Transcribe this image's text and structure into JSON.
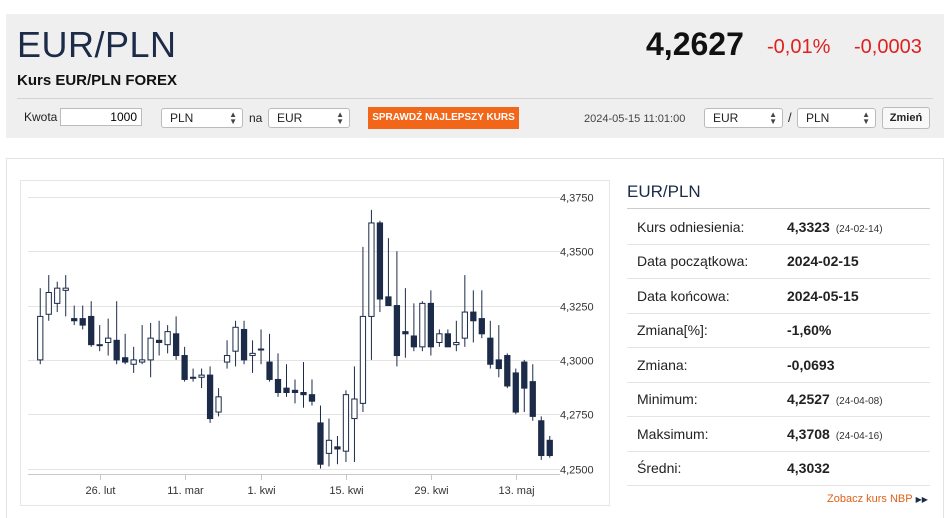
{
  "header": {
    "pair": "EUR/PLN",
    "subtitle": "Kurs EUR/PLN FOREX",
    "rate": "4,2627",
    "change_pct": "-0,01%",
    "change_abs": "-0,0003",
    "colors": {
      "negative": "#e02020",
      "title": "#1b2b48"
    }
  },
  "converter": {
    "amount_label": "Kwota",
    "amount_value": "1000",
    "from_currency": "PLN",
    "to_label": "na",
    "to_currency": "EUR",
    "button_label": "SPRAWDŹ NAJLEPSZY KURS",
    "button_color": "#f2661a",
    "timestamp": "2024-05-15 11:01:00",
    "pair_base": "EUR",
    "pair_sep": "/",
    "pair_quote": "PLN",
    "change_button": "Zmień"
  },
  "stats": {
    "title": "EUR/PLN",
    "rows": [
      {
        "label": "Kurs odniesienia:",
        "value": "4,3323",
        "date": "(24-02-14)"
      },
      {
        "label": "Data początkowa:",
        "value": "2024-02-15",
        "date": ""
      },
      {
        "label": "Data końcowa:",
        "value": "2024-05-15",
        "date": ""
      },
      {
        "label": "Zmiana[%]:",
        "value": "-1,60%",
        "date": ""
      },
      {
        "label": "Zmiana:",
        "value": "-0,0693",
        "date": ""
      },
      {
        "label": "Minimum:",
        "value": "4,2527",
        "date": "(24-04-08)"
      },
      {
        "label": "Maksimum:",
        "value": "4,3708",
        "date": "(24-04-16)"
      },
      {
        "label": "Średni:",
        "value": "4,3032",
        "date": ""
      }
    ],
    "nbp_link": "Zobacz kurs NBP"
  },
  "chart_data": {
    "type": "candlestick",
    "ylim": [
      4.2475,
      4.38
    ],
    "yticks": [
      4.375,
      4.35,
      4.325,
      4.3,
      4.275,
      4.25
    ],
    "ytick_labels": [
      "4,3750",
      "4,3500",
      "4,3250",
      "4,3000",
      "4,2750",
      "4,2500"
    ],
    "xticks": [
      {
        "label": "26. lut",
        "index": 7
      },
      {
        "label": "11. mar",
        "index": 17
      },
      {
        "label": "1. kwi",
        "index": 26
      },
      {
        "label": "15. kwi",
        "index": 36
      },
      {
        "label": "29. kwi",
        "index": 46
      },
      {
        "label": "13. maj",
        "index": 56
      }
    ],
    "grid": true,
    "colors": {
      "up": "#ffffff",
      "down": "#1b2b48",
      "outline": "#1b2b48"
    },
    "candles": [
      {
        "o": 4.3,
        "h": 4.333,
        "l": 4.298,
        "c": 4.32
      },
      {
        "o": 4.321,
        "h": 4.339,
        "l": 4.318,
        "c": 4.331
      },
      {
        "o": 4.326,
        "h": 4.336,
        "l": 4.322,
        "c": 4.333
      },
      {
        "o": 4.332,
        "h": 4.339,
        "l": 4.32,
        "c": 4.333
      },
      {
        "o": 4.319,
        "h": 4.325,
        "l": 4.316,
        "c": 4.318
      },
      {
        "o": 4.319,
        "h": 4.325,
        "l": 4.314,
        "c": 4.316
      },
      {
        "o": 4.32,
        "h": 4.327,
        "l": 4.306,
        "c": 4.307
      },
      {
        "o": 4.307,
        "h": 4.316,
        "l": 4.304,
        "c": 4.307
      },
      {
        "o": 4.308,
        "h": 4.319,
        "l": 4.302,
        "c": 4.31
      },
      {
        "o": 4.309,
        "h": 4.327,
        "l": 4.298,
        "c": 4.3
      },
      {
        "o": 4.301,
        "h": 4.312,
        "l": 4.298,
        "c": 4.299
      },
      {
        "o": 4.298,
        "h": 4.306,
        "l": 4.294,
        "c": 4.3
      },
      {
        "o": 4.299,
        "h": 4.316,
        "l": 4.298,
        "c": 4.3
      },
      {
        "o": 4.3,
        "h": 4.317,
        "l": 4.292,
        "c": 4.31
      },
      {
        "o": 4.309,
        "h": 4.318,
        "l": 4.302,
        "c": 4.308
      },
      {
        "o": 4.307,
        "h": 4.316,
        "l": 4.303,
        "c": 4.313
      },
      {
        "o": 4.312,
        "h": 4.32,
        "l": 4.3,
        "c": 4.302
      },
      {
        "o": 4.302,
        "h": 4.306,
        "l": 4.29,
        "c": 4.291
      },
      {
        "o": 4.292,
        "h": 4.296,
        "l": 4.29,
        "c": 4.292
      },
      {
        "o": 4.292,
        "h": 4.296,
        "l": 4.287,
        "c": 4.293
      },
      {
        "o": 4.293,
        "h": 4.297,
        "l": 4.271,
        "c": 4.273
      },
      {
        "o": 4.276,
        "h": 4.287,
        "l": 4.274,
        "c": 4.283
      },
      {
        "o": 4.299,
        "h": 4.309,
        "l": 4.296,
        "c": 4.302
      },
      {
        "o": 4.304,
        "h": 4.318,
        "l": 4.297,
        "c": 4.315
      },
      {
        "o": 4.314,
        "h": 4.318,
        "l": 4.298,
        "c": 4.3
      },
      {
        "o": 4.302,
        "h": 4.309,
        "l": 4.294,
        "c": 4.303
      },
      {
        "o": 4.305,
        "h": 4.314,
        "l": 4.298,
        "c": 4.305
      },
      {
        "o": 4.299,
        "h": 4.312,
        "l": 4.29,
        "c": 4.291
      },
      {
        "o": 4.291,
        "h": 4.303,
        "l": 4.283,
        "c": 4.285
      },
      {
        "o": 4.287,
        "h": 4.298,
        "l": 4.283,
        "c": 4.285
      },
      {
        "o": 4.286,
        "h": 4.291,
        "l": 4.28,
        "c": 4.285
      },
      {
        "o": 4.285,
        "h": 4.299,
        "l": 4.278,
        "c": 4.284
      },
      {
        "o": 4.284,
        "h": 4.291,
        "l": 4.279,
        "c": 4.281
      },
      {
        "o": 4.271,
        "h": 4.279,
        "l": 4.25,
        "c": 4.252
      },
      {
        "o": 4.257,
        "h": 4.273,
        "l": 4.251,
        "c": 4.263
      },
      {
        "o": 4.26,
        "h": 4.265,
        "l": 4.252,
        "c": 4.259
      },
      {
        "o": 4.258,
        "h": 4.286,
        "l": 4.253,
        "c": 4.284
      },
      {
        "o": 4.273,
        "h": 4.297,
        "l": 4.253,
        "c": 4.282
      },
      {
        "o": 4.28,
        "h": 4.352,
        "l": 4.276,
        "c": 4.32
      },
      {
        "o": 4.32,
        "h": 4.369,
        "l": 4.3,
        "c": 4.363
      },
      {
        "o": 4.363,
        "h": 4.364,
        "l": 4.322,
        "c": 4.328
      },
      {
        "o": 4.329,
        "h": 4.356,
        "l": 4.325,
        "c": 4.325
      },
      {
        "o": 4.325,
        "h": 4.35,
        "l": 4.297,
        "c": 4.302
      },
      {
        "o": 4.313,
        "h": 4.333,
        "l": 4.301,
        "c": 4.312
      },
      {
        "o": 4.311,
        "h": 4.326,
        "l": 4.304,
        "c": 4.306
      },
      {
        "o": 4.306,
        "h": 4.327,
        "l": 4.304,
        "c": 4.326
      },
      {
        "o": 4.326,
        "h": 4.332,
        "l": 4.302,
        "c": 4.306
      },
      {
        "o": 4.308,
        "h": 4.314,
        "l": 4.306,
        "c": 4.312
      },
      {
        "o": 4.312,
        "h": 4.314,
        "l": 4.306,
        "c": 4.306
      },
      {
        "o": 4.307,
        "h": 4.318,
        "l": 4.304,
        "c": 4.308
      },
      {
        "o": 4.31,
        "h": 4.339,
        "l": 4.306,
        "c": 4.322
      },
      {
        "o": 4.322,
        "h": 4.332,
        "l": 4.308,
        "c": 4.318
      },
      {
        "o": 4.319,
        "h": 4.332,
        "l": 4.31,
        "c": 4.312
      },
      {
        "o": 4.31,
        "h": 4.318,
        "l": 4.296,
        "c": 4.298
      },
      {
        "o": 4.3,
        "h": 4.316,
        "l": 4.292,
        "c": 4.296
      },
      {
        "o": 4.302,
        "h": 4.303,
        "l": 4.287,
        "c": 4.288
      },
      {
        "o": 4.294,
        "h": 4.296,
        "l": 4.275,
        "c": 4.276
      },
      {
        "o": 4.299,
        "h": 4.3,
        "l": 4.276,
        "c": 4.287
      },
      {
        "o": 4.29,
        "h": 4.298,
        "l": 4.272,
        "c": 4.274
      },
      {
        "o": 4.272,
        "h": 4.274,
        "l": 4.254,
        "c": 4.256
      },
      {
        "o": 4.263,
        "h": 4.265,
        "l": 4.255,
        "c": 4.256
      }
    ]
  }
}
